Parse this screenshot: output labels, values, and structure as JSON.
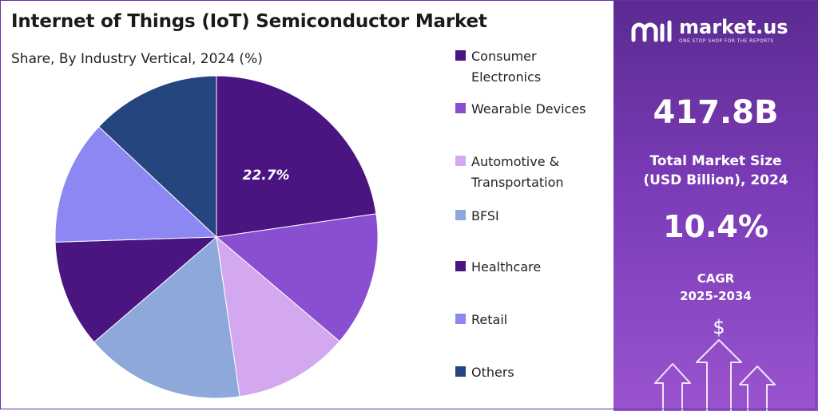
{
  "chart_data": {
    "type": "pie",
    "title": "Internet of Things (IoT) Semiconductor Market",
    "subtitle": "Share, By Industry Vertical, 2024 (%)",
    "legend_position": "right",
    "slices": [
      {
        "label": "Consumer Electronics",
        "value": 22.7,
        "color": "#4a1580",
        "data_label": "22.7%"
      },
      {
        "label": "Wearable Devices",
        "value": 13.5,
        "color": "#8a4fd0"
      },
      {
        "label": "Automotive & Transportation",
        "value": 11.5,
        "color": "#d3a8ee"
      },
      {
        "label": "BFSI",
        "value": 16.0,
        "color": "#8fa8da"
      },
      {
        "label": "Healthcare",
        "value": 10.8,
        "color": "#4a1580"
      },
      {
        "label": "Retail",
        "value": 12.5,
        "color": "#8c87f2"
      },
      {
        "label": "Others",
        "value": 13.0,
        "color": "#24457d"
      }
    ]
  },
  "legend": {
    "swatch_colors": [
      "#4a1580",
      "#8a4fd0",
      "#d3a8ee",
      "#8fa8da",
      "#4a1580",
      "#8c87f2",
      "#24457d"
    ]
  },
  "panel": {
    "brand": "market.us",
    "tagline": "ONE STOP SHOP FOR THE REPORTS",
    "market_size_value": "417.8B",
    "market_size_label_line1": "Total Market Size",
    "market_size_label_line2": "(USD Billion), 2024",
    "cagr_value": "10.4%",
    "cagr_label_line1": "CAGR",
    "cagr_label_line2": "2025-2034",
    "dollar_symbol": "$",
    "icons": [
      "market-us-logo-icon",
      "growth-arrows-icon",
      "dollar-icon"
    ]
  }
}
